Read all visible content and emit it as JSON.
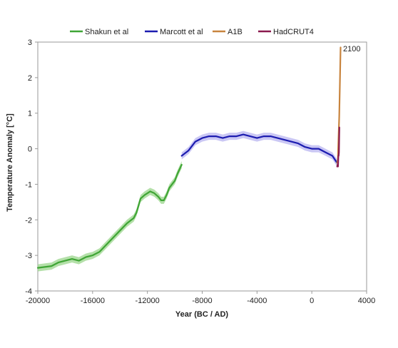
{
  "chart_data": {
    "type": "line",
    "title": "",
    "xlabel": "Year (BC / AD)",
    "ylabel": "Temperature Anomaly [°C]",
    "xlim": [
      -20000,
      4000
    ],
    "ylim": [
      -4,
      3
    ],
    "x_ticks": [
      -20000,
      -16000,
      -12000,
      -8000,
      -4000,
      0,
      4000
    ],
    "x_tick_labels": [
      "-20000",
      "-16000",
      "-12000",
      "-8000",
      "-4000",
      "0",
      "4000"
    ],
    "y_ticks": [
      -4,
      -3,
      -2,
      -1,
      0,
      1,
      2,
      3
    ],
    "y_tick_labels": [
      "-4",
      "-3",
      "-2",
      "-1",
      "0",
      "1",
      "2",
      "3"
    ],
    "grid": false,
    "legend_position": "top",
    "annotations": [
      {
        "text": "2100",
        "x": 2100,
        "y": 2.8
      }
    ],
    "series": [
      {
        "name": "Shakun et al",
        "color": "#3fa535",
        "band_color": "#9bd68c",
        "band": 0.1,
        "x": [
          -20000,
          -19000,
          -18500,
          -18000,
          -17500,
          -17000,
          -16500,
          -16000,
          -15500,
          -15000,
          -14500,
          -14000,
          -13500,
          -13000,
          -12800,
          -12500,
          -12200,
          -12000,
          -11800,
          -11500,
          -11200,
          -11000,
          -10800,
          -10600,
          -10400,
          -10200,
          -10000,
          -9800,
          -9500
        ],
        "y": [
          -3.35,
          -3.3,
          -3.2,
          -3.15,
          -3.1,
          -3.15,
          -3.05,
          -3.0,
          -2.9,
          -2.7,
          -2.5,
          -2.3,
          -2.1,
          -1.95,
          -1.8,
          -1.4,
          -1.3,
          -1.25,
          -1.2,
          -1.25,
          -1.35,
          -1.45,
          -1.45,
          -1.3,
          -1.1,
          -1.0,
          -0.9,
          -0.7,
          -0.45
        ]
      },
      {
        "name": "Marcott et al",
        "color": "#1c1cb0",
        "band_color": "#b8b4f0",
        "band": 0.1,
        "x": [
          -9500,
          -9000,
          -8500,
          -8000,
          -7500,
          -7000,
          -6500,
          -6000,
          -5500,
          -5000,
          -4500,
          -4000,
          -3500,
          -3000,
          -2500,
          -2000,
          -1500,
          -1000,
          -500,
          0,
          500,
          1000,
          1500,
          1850
        ],
        "y": [
          -0.2,
          -0.05,
          0.2,
          0.3,
          0.35,
          0.35,
          0.3,
          0.35,
          0.35,
          0.4,
          0.35,
          0.3,
          0.35,
          0.35,
          0.3,
          0.25,
          0.2,
          0.15,
          0.05,
          0.0,
          0.0,
          -0.1,
          -0.2,
          -0.4
        ]
      },
      {
        "name": "A1B",
        "color": "#c8843e",
        "x": [
          1850,
          1900,
          1950,
          2000,
          2050,
          2100
        ],
        "y": [
          -0.4,
          -0.3,
          0.3,
          0.9,
          1.8,
          2.85
        ]
      },
      {
        "name": "HadCRUT4",
        "color": "#8a1a4e",
        "x": [
          1850,
          1880,
          1910,
          1940,
          1960,
          1980,
          2000,
          2013
        ],
        "y": [
          -0.5,
          -0.45,
          -0.5,
          -0.2,
          -0.2,
          -0.1,
          0.4,
          0.6
        ]
      }
    ]
  }
}
